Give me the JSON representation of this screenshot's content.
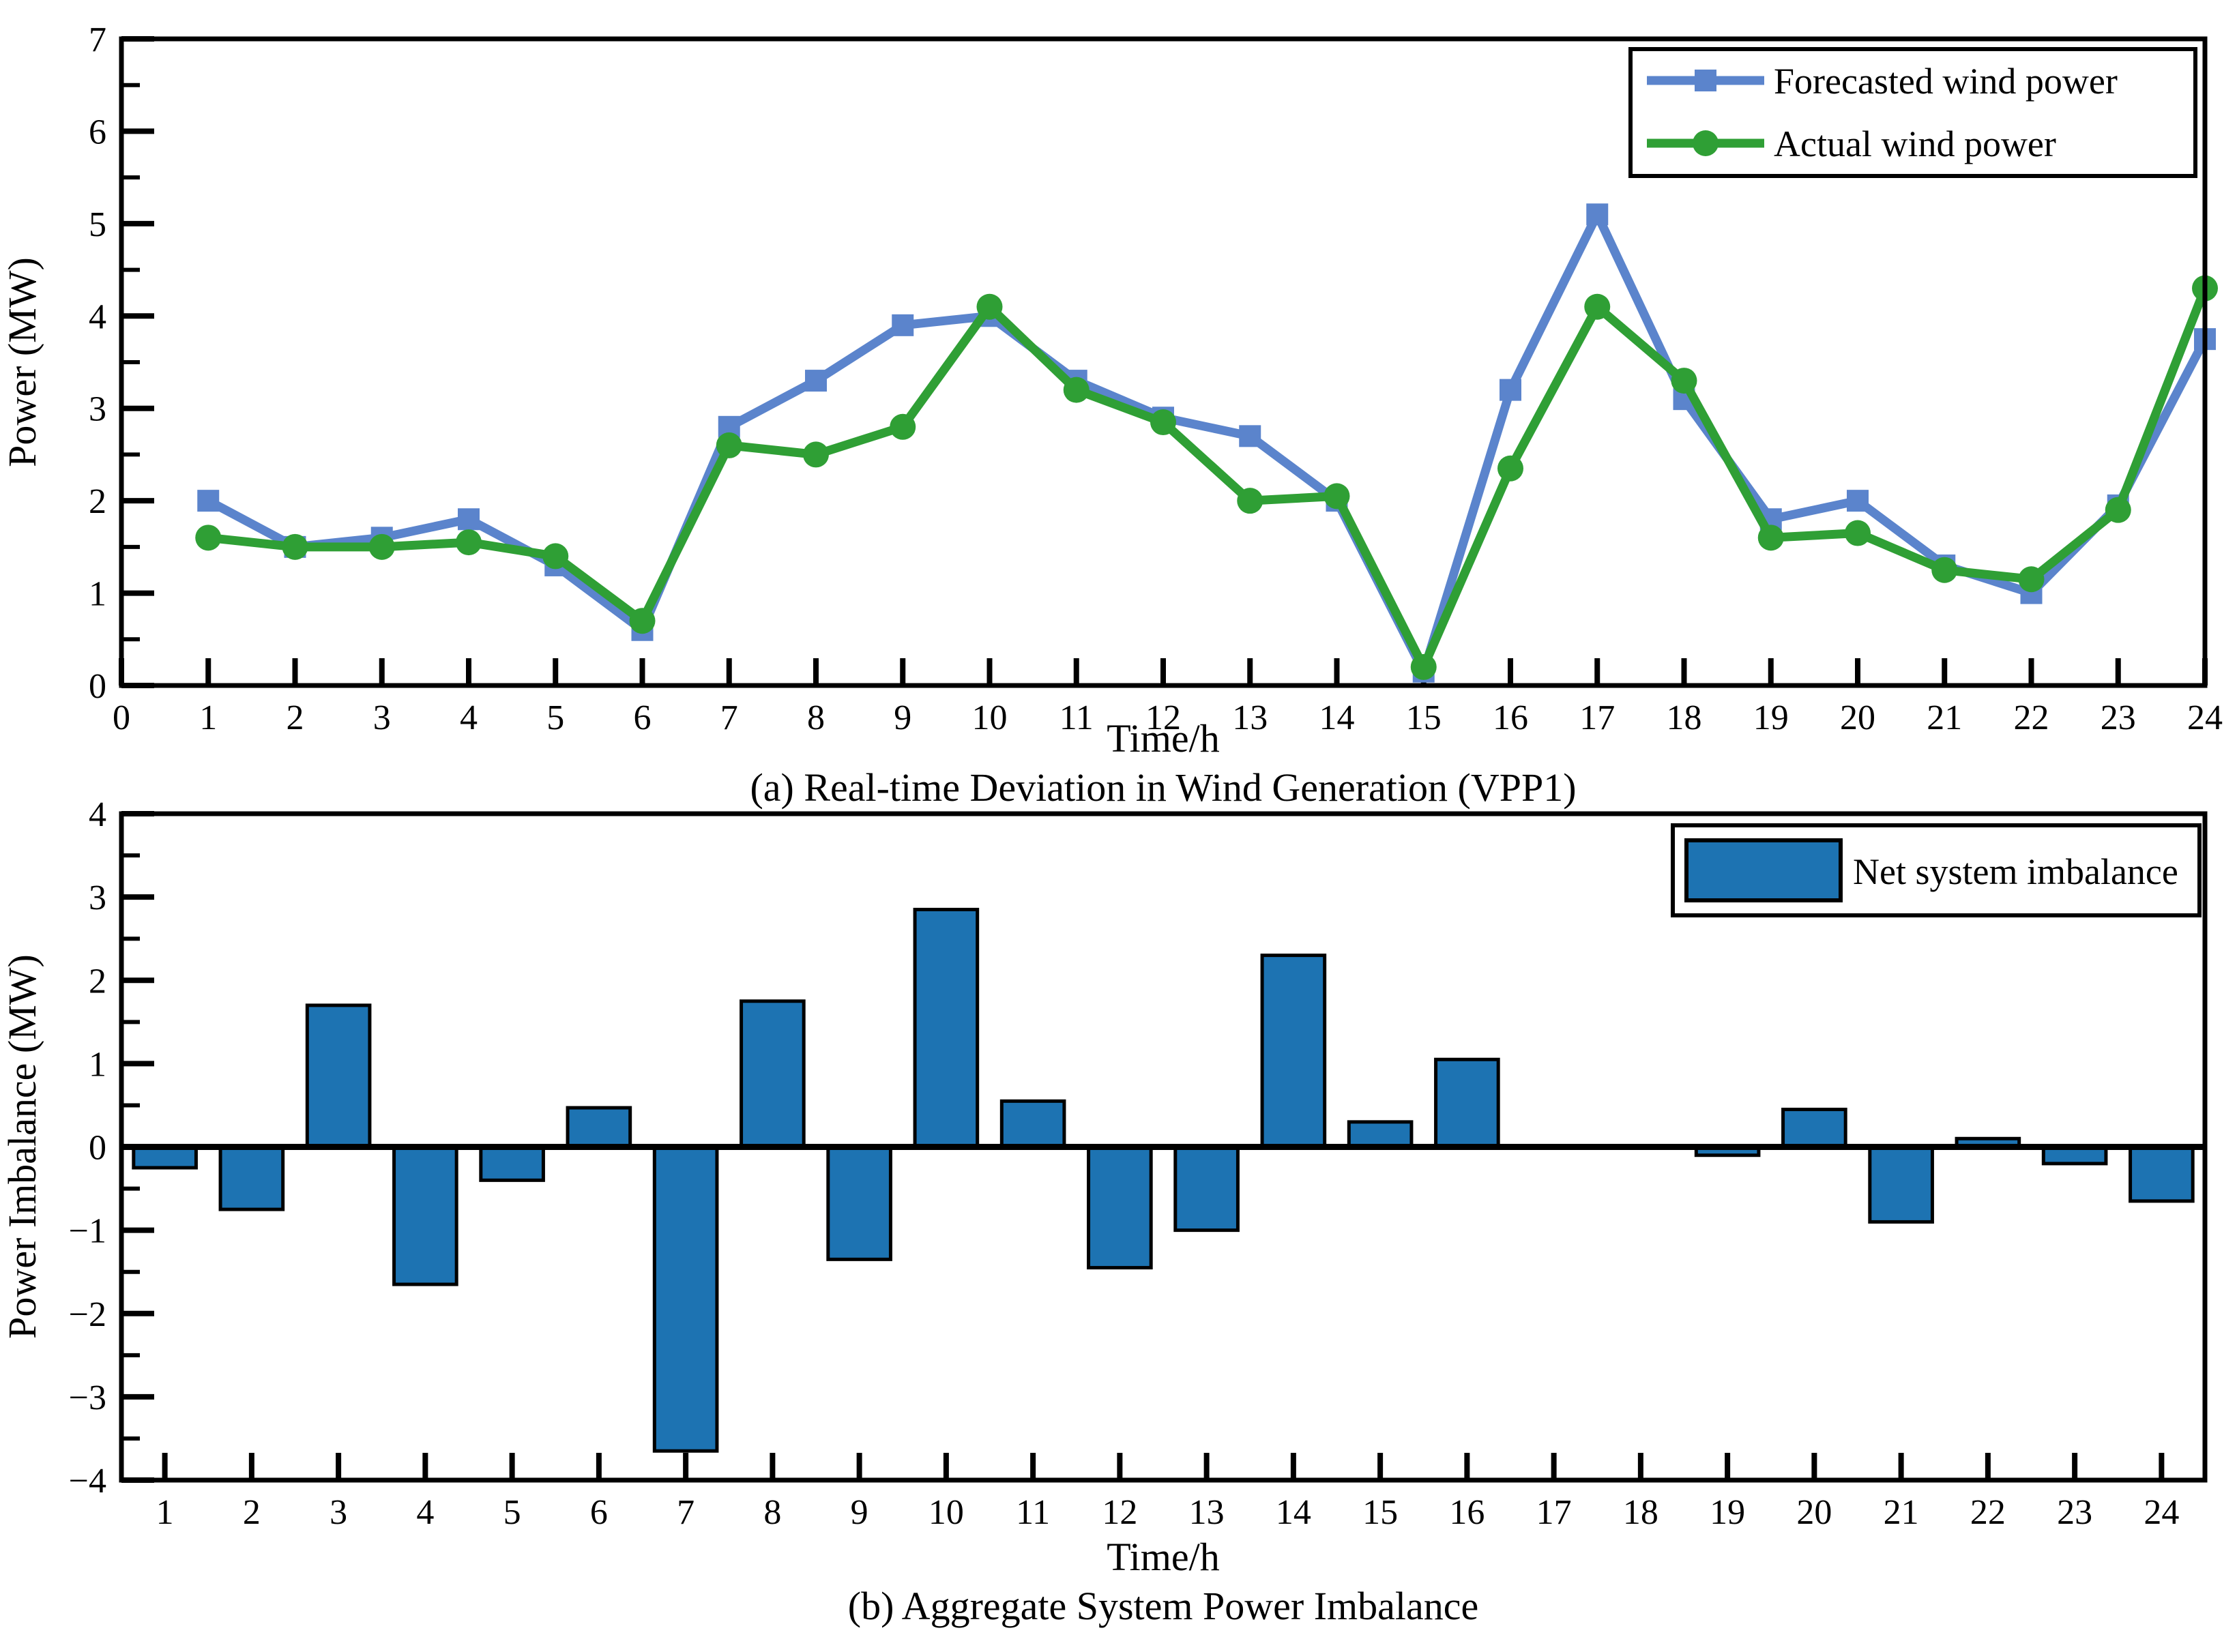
{
  "panel_a": {
    "ylabel": "Power (MW)",
    "xlabel": "Time/h",
    "caption": "(a) Real-time Deviation in Wind Generation (VPP1)",
    "legend": {
      "forecast": "Forecasted wind power",
      "actual": "Actual wind power"
    }
  },
  "panel_b": {
    "ylabel": "Power Imbalance (MW)",
    "xlabel": "Time/h",
    "caption": "(b) Aggregate System Power Imbalance",
    "legend": {
      "imbalance": "Net system imbalance"
    }
  },
  "colors": {
    "forecast_line": "#5b84cc",
    "actual_line": "#2f9f35",
    "bar_fill": "#1d73b2",
    "bar_edge": "#000000",
    "axis": "#000000",
    "background": "#ffffff"
  },
  "chart_data": [
    {
      "type": "line",
      "panel": "a",
      "title": "(a) Real-time Deviation in Wind Generation (VPP1)",
      "xlabel": "Time/h",
      "ylabel": "Power (MW)",
      "x": [
        1,
        2,
        3,
        4,
        5,
        6,
        7,
        8,
        9,
        10,
        11,
        12,
        13,
        14,
        15,
        16,
        17,
        18,
        19,
        20,
        21,
        22,
        23,
        24
      ],
      "series": [
        {
          "name": "Forecasted wind power",
          "color": "#5b84cc",
          "marker": "square",
          "values": [
            2.0,
            1.5,
            1.6,
            1.8,
            1.3,
            0.6,
            2.8,
            3.3,
            3.9,
            4.0,
            3.3,
            2.9,
            2.7,
            2.0,
            0.15,
            3.2,
            5.1,
            3.1,
            1.8,
            2.0,
            1.3,
            1.0,
            1.95,
            3.75
          ]
        },
        {
          "name": "Actual wind power",
          "color": "#2f9f35",
          "marker": "circle",
          "values": [
            1.6,
            1.5,
            1.5,
            1.55,
            1.4,
            0.7,
            2.6,
            2.5,
            2.8,
            4.1,
            3.2,
            2.85,
            2.0,
            2.05,
            0.2,
            2.35,
            4.1,
            3.3,
            1.6,
            1.65,
            1.25,
            1.15,
            1.9,
            4.3
          ]
        }
      ],
      "xlim": [
        0,
        24
      ],
      "ylim": [
        0,
        7
      ],
      "xticks": [
        0,
        1,
        2,
        3,
        4,
        5,
        6,
        7,
        8,
        9,
        10,
        11,
        12,
        13,
        14,
        15,
        16,
        17,
        18,
        19,
        20,
        21,
        22,
        23,
        24
      ],
      "yticks": [
        0,
        1,
        2,
        3,
        4,
        5,
        6,
        7
      ],
      "y_minor_step": 0.5,
      "grid": false,
      "legend_position": "top-right"
    },
    {
      "type": "bar",
      "panel": "b",
      "title": "(b) Aggregate System Power Imbalance",
      "xlabel": "Time/h",
      "ylabel": "Power Imbalance (MW)",
      "series_name": "Net system imbalance",
      "categories": [
        1,
        2,
        3,
        4,
        5,
        6,
        7,
        8,
        9,
        10,
        11,
        12,
        13,
        14,
        15,
        16,
        17,
        18,
        19,
        20,
        21,
        22,
        23,
        24
      ],
      "values": [
        -0.25,
        -0.75,
        1.7,
        -1.65,
        -0.4,
        0.47,
        -3.65,
        1.75,
        -1.35,
        2.85,
        0.55,
        -1.45,
        -1.0,
        2.3,
        0.3,
        1.05,
        0,
        0,
        -0.1,
        0.45,
        -0.9,
        0.1,
        -0.2,
        -0.65
      ],
      "bar_color": "#1d73b2",
      "bar_edge_color": "#000000",
      "xlim": [
        0.5,
        24.5
      ],
      "ylim": [
        -4,
        4
      ],
      "xticks": [
        1,
        2,
        3,
        4,
        5,
        6,
        7,
        8,
        9,
        10,
        11,
        12,
        13,
        14,
        15,
        16,
        17,
        18,
        19,
        20,
        21,
        22,
        23,
        24
      ],
      "yticks": [
        -4,
        -3,
        -2,
        -1,
        0,
        1,
        2,
        3,
        4
      ],
      "y_minor_step": 0.5,
      "grid": false,
      "legend_position": "top-right"
    }
  ]
}
